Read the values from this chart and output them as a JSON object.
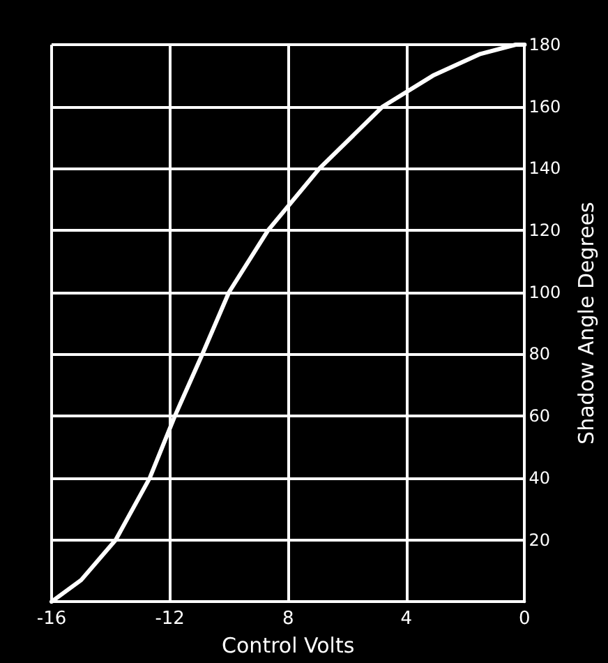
{
  "chart_data": {
    "type": "line",
    "xlabel": "Control Volts",
    "ylabel": "Shadow Angle Degrees",
    "x": [
      -16,
      -15,
      -13.83,
      -12.68,
      -11.83,
      -10.9,
      -10.0,
      -8.68,
      -6.94,
      -4.8,
      -3.1,
      -1.5,
      -0.3,
      0
    ],
    "series": [
      {
        "color": "#ffffff",
        "values": [
          0,
          7,
          20,
          40,
          60,
          80,
          100,
          120,
          140,
          160,
          170,
          177,
          180,
          180
        ]
      }
    ],
    "xlim": [
      -16,
      0
    ],
    "xticks": [
      -16,
      -12,
      {
        "value": -8,
        "label": "8"
      },
      {
        "value": -4,
        "label": "4"
      },
      0
    ],
    "ylim": [
      0,
      180
    ],
    "yticks": [
      20,
      40,
      60,
      80,
      100,
      120,
      140,
      160,
      180
    ],
    "grid": true,
    "marker": "none",
    "line_style": "solid"
  }
}
